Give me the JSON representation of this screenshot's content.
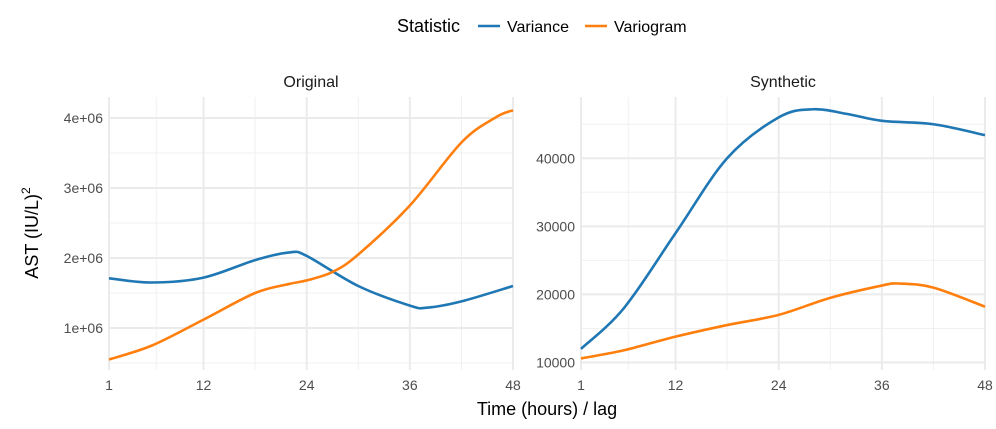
{
  "legend": {
    "title": "Statistic",
    "placement": "top"
  },
  "colors": {
    "Variance": "#1f77b4",
    "Variogram": "#ff7f0e"
  },
  "xlabel": "Time (hours) / lag",
  "ylabel": "AST (IU/L)",
  "ylabel_sup": "2",
  "chart_data": [
    {
      "type": "line",
      "title": "Original",
      "xlim": [
        1,
        48
      ],
      "ylim": [
        400000,
        4300000
      ],
      "xticks": [
        1,
        12,
        24,
        36,
        48
      ],
      "yticks": [
        1000000,
        2000000,
        3000000,
        4000000
      ],
      "ytick_labels": [
        "1e+06",
        "2e+06",
        "3e+06",
        "4e+06"
      ],
      "grid": true,
      "series": [
        {
          "name": "Variance",
          "x": [
            1,
            6,
            12,
            18,
            22,
            24,
            30,
            36,
            38,
            42,
            48
          ],
          "y": [
            1710000,
            1650000,
            1720000,
            1970000,
            2080000,
            2030000,
            1600000,
            1320000,
            1290000,
            1380000,
            1600000
          ]
        },
        {
          "name": "Variogram",
          "x": [
            1,
            6,
            12,
            18,
            22,
            24,
            27,
            30,
            36,
            42,
            46,
            48
          ],
          "y": [
            550000,
            750000,
            1120000,
            1500000,
            1630000,
            1680000,
            1800000,
            2050000,
            2750000,
            3650000,
            4010000,
            4110000
          ]
        }
      ]
    },
    {
      "type": "line",
      "title": "Synthetic",
      "xlim": [
        1,
        48
      ],
      "ylim": [
        8900,
        49000
      ],
      "xticks": [
        1,
        12,
        24,
        36,
        48
      ],
      "yticks": [
        10000,
        20000,
        30000,
        40000
      ],
      "ytick_labels": [
        "10000",
        "20000",
        "30000",
        "40000"
      ],
      "grid": true,
      "series": [
        {
          "name": "Variance",
          "x": [
            1,
            6,
            12,
            18,
            24,
            28,
            32,
            36,
            42,
            48
          ],
          "y": [
            12000,
            18000,
            29000,
            40000,
            46000,
            47200,
            46500,
            45500,
            45000,
            43400
          ]
        },
        {
          "name": "Variogram",
          "x": [
            1,
            6,
            12,
            18,
            24,
            30,
            36,
            38,
            42,
            48
          ],
          "y": [
            10600,
            11800,
            13800,
            15500,
            17000,
            19500,
            21300,
            21600,
            21000,
            18200
          ]
        }
      ]
    }
  ]
}
